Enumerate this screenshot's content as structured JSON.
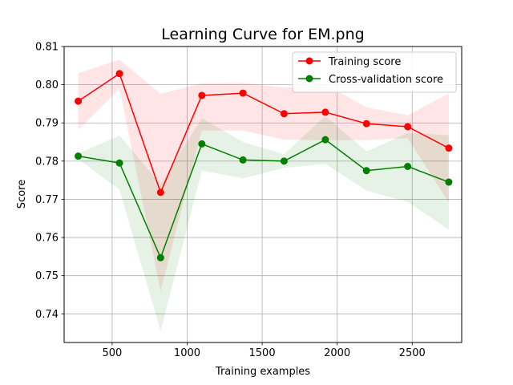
{
  "chart_data": {
    "type": "line",
    "title": "Learning Curve for EM.png",
    "xlabel": "Training examples",
    "ylabel": "Score",
    "xlim": [
      180,
      2830
    ],
    "ylim": [
      0.7325,
      0.81
    ],
    "grid": true,
    "legend_position": "top-right",
    "x_ticks": [
      500,
      1000,
      1500,
      2000,
      2500
    ],
    "x_tick_labels": [
      "500",
      "1000",
      "1500",
      "2000",
      "2500"
    ],
    "y_ticks": [
      0.74,
      0.75,
      0.76,
      0.77,
      0.78,
      0.79,
      0.8,
      0.81
    ],
    "y_tick_labels": [
      "0.74",
      "0.75",
      "0.76",
      "0.77",
      "0.78",
      "0.79",
      "0.80",
      "0.81"
    ],
    "x": [
      274,
      549,
      823,
      1098,
      1372,
      1646,
      1921,
      2195,
      2470,
      2744
    ],
    "series": [
      {
        "name": "Training score",
        "color": "#ff0000",
        "band_color": "#ff0000",
        "values": [
          0.7957,
          0.8029,
          0.7718,
          0.7972,
          0.7978,
          0.7924,
          0.7928,
          0.7898,
          0.789,
          0.7834
        ],
        "band_lower": [
          0.7882,
          0.799,
          0.746,
          0.788,
          0.788,
          0.7856,
          0.7855,
          0.7855,
          0.786,
          0.7692
        ],
        "band_upper": [
          0.803,
          0.8066,
          0.7976,
          0.8004,
          0.8005,
          0.7992,
          0.8001,
          0.7941,
          0.792,
          0.7977
        ]
      },
      {
        "name": "Cross-validation score",
        "color": "#008000",
        "band_color": "#008000",
        "values": [
          0.7813,
          0.7795,
          0.7547,
          0.7845,
          0.7803,
          0.78,
          0.7856,
          0.7775,
          0.7786,
          0.7745
        ],
        "band_lower": [
          0.7806,
          0.7725,
          0.7355,
          0.7775,
          0.7755,
          0.7782,
          0.7793,
          0.7723,
          0.7693,
          0.7621
        ],
        "band_upper": [
          0.782,
          0.7867,
          0.774,
          0.7912,
          0.785,
          0.7818,
          0.7918,
          0.7825,
          0.7874,
          0.7868
        ]
      }
    ]
  }
}
